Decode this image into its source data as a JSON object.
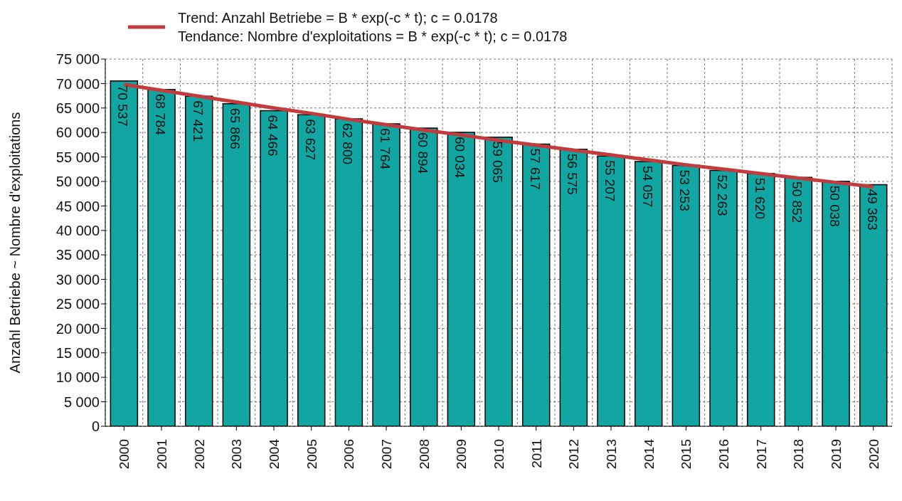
{
  "chart_data": {
    "type": "bar",
    "ylabel": "Anzahl Betriebe  ~  Nombre d'exploitations",
    "categories": [
      "2000",
      "2001",
      "2002",
      "2003",
      "2004",
      "2005",
      "2006",
      "2007",
      "2008",
      "2009",
      "2010",
      "2011",
      "2012",
      "2013",
      "2014",
      "2015",
      "2016",
      "2017",
      "2018",
      "2019",
      "2020"
    ],
    "series": [
      {
        "color": "#12a6a2",
        "values": [
          70537,
          68784,
          67421,
          65866,
          64466,
          63627,
          62800,
          61764,
          60894,
          60034,
          59065,
          57617,
          56575,
          55207,
          54057,
          53253,
          52263,
          51620,
          50852,
          50038,
          49363
        ],
        "value_labels": [
          "70 537",
          "68 784",
          "67 421",
          "65 866",
          "64 466",
          "63 627",
          "62 800",
          "61 764",
          "60 894",
          "60 034",
          "59 065",
          "57 617",
          "56 575",
          "55 207",
          "54 057",
          "53 253",
          "52 263",
          "51 620",
          "50 852",
          "50 038",
          "49 363"
        ]
      },
      {
        "type": "line",
        "name": "Trend: Anzahl Betriebe = B * exp(-c * t); c = 0.0178\nTendance: Nombre d'exploitations = B * exp(-c * t); c = 0.0178",
        "color": "#c23b3d",
        "values": [
          69800,
          68600,
          67400,
          66200,
          65000,
          63900,
          62700,
          61600,
          60500,
          59500,
          58400,
          57400,
          56400,
          55400,
          54400,
          53400,
          52500,
          51600,
          50700,
          49800,
          48900
        ]
      }
    ],
    "ylim": [
      0,
      75000
    ],
    "yticks": [
      0,
      {
        "value": 5000,
        "label": "5 000"
      },
      {
        "value": 10000,
        "label": "10 000"
      },
      {
        "value": 15000,
        "label": "15 000"
      },
      {
        "value": 20000,
        "label": "20 000"
      },
      {
        "value": 25000,
        "label": "25 000"
      },
      {
        "value": 30000,
        "label": "30 000"
      },
      {
        "value": 35000,
        "label": "35 000"
      },
      {
        "value": 40000,
        "label": "40 000"
      },
      {
        "value": 45000,
        "label": "45 000"
      },
      {
        "value": 50000,
        "label": "50 000"
      },
      {
        "value": 55000,
        "label": "55 000"
      },
      {
        "value": 60000,
        "label": "60 000"
      },
      {
        "value": 65000,
        "label": "65 000"
      },
      {
        "value": 70000,
        "label": "70 000"
      },
      {
        "value": 75000,
        "label": "75 000"
      }
    ],
    "grid": true,
    "legend": "top left",
    "marker": "none",
    "line_style": "solid"
  }
}
